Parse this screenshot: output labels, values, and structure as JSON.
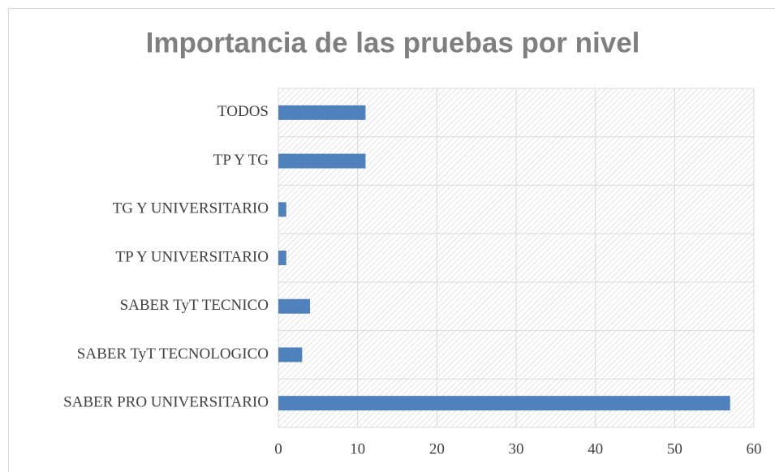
{
  "chart_data": {
    "type": "bar",
    "orientation": "horizontal",
    "title": "Importancia de las pruebas por nivel",
    "categories": [
      "TODOS",
      "TP Y TG",
      "TG Y UNIVERSITARIO",
      "TP Y UNIVERSITARIO",
      "SABER TyT TECNICO",
      "SABER TyT TECNOLOGICO",
      "SABER PRO UNIVERSITARIO"
    ],
    "values": [
      11,
      11,
      1,
      1,
      4,
      3,
      57
    ],
    "color": "#4f81bd",
    "xlim": [
      0,
      60
    ],
    "xticks": [
      0,
      10,
      20,
      30,
      40,
      50,
      60
    ],
    "grid": true
  }
}
